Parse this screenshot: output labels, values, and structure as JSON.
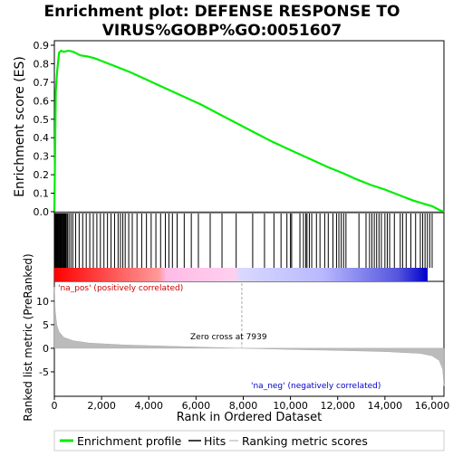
{
  "chart_data": {
    "type": "line",
    "title_line1": "Enrichment plot: DEFENSE RESPONSE TO",
    "title_line2": "VIRUS%GOBP%GO:0051607",
    "top_panel": {
      "ylabel": "Enrichment score (ES)",
      "ylim": [
        0,
        0.9
      ],
      "yticks": [
        "0.0",
        "0.1",
        "0.2",
        "0.3",
        "0.4",
        "0.5",
        "0.6",
        "0.7",
        "0.8",
        "0.9"
      ],
      "es_curve": [
        [
          0,
          0
        ],
        [
          60,
          0.65
        ],
        [
          120,
          0.76
        ],
        [
          200,
          0.86
        ],
        [
          280,
          0.87
        ],
        [
          400,
          0.865
        ],
        [
          600,
          0.87
        ],
        [
          800,
          0.865
        ],
        [
          1100,
          0.845
        ],
        [
          1400,
          0.84
        ],
        [
          1700,
          0.83
        ],
        [
          2100,
          0.81
        ],
        [
          2600,
          0.785
        ],
        [
          3200,
          0.755
        ],
        [
          3800,
          0.72
        ],
        [
          4400,
          0.685
        ],
        [
          5000,
          0.65
        ],
        [
          5600,
          0.615
        ],
        [
          6200,
          0.58
        ],
        [
          6800,
          0.54
        ],
        [
          7400,
          0.5
        ],
        [
          8000,
          0.46
        ],
        [
          8600,
          0.42
        ],
        [
          9200,
          0.38
        ],
        [
          9800,
          0.345
        ],
        [
          10400,
          0.31
        ],
        [
          11000,
          0.275
        ],
        [
          11600,
          0.24
        ],
        [
          12200,
          0.21
        ],
        [
          12800,
          0.175
        ],
        [
          13400,
          0.145
        ],
        [
          14000,
          0.12
        ],
        [
          14600,
          0.09
        ],
        [
          15200,
          0.06
        ],
        [
          15600,
          0.045
        ],
        [
          16000,
          0.03
        ],
        [
          16300,
          0.01
        ],
        [
          16500,
          0
        ]
      ]
    },
    "hits_panel": {
      "hit_positions": [
        20,
        45,
        70,
        95,
        120,
        150,
        180,
        210,
        240,
        270,
        300,
        330,
        360,
        390,
        420,
        450,
        480,
        510,
        560,
        620,
        700,
        780,
        900,
        1050,
        1200,
        1350,
        1500,
        1650,
        1800,
        1950,
        2100,
        2250,
        2400,
        2550,
        2700,
        2800,
        2900,
        3000,
        3150,
        3300,
        3500,
        3700,
        3900,
        4100,
        4300,
        4500,
        4700,
        4850,
        5000,
        5200,
        5500,
        5800,
        6100,
        6600,
        7100,
        7700,
        8400,
        8900,
        9300,
        9600,
        9850,
        10000,
        10050,
        10400,
        10550,
        10650,
        10700,
        10800,
        10900,
        11100,
        11250,
        11450,
        11600,
        11800,
        11950,
        12050,
        12150,
        12250,
        12350,
        12900,
        13200,
        13350,
        13450,
        13550,
        13650,
        13750,
        13850,
        14000,
        14100,
        14200,
        14400,
        14650,
        14750,
        14900,
        15100,
        15300,
        15500,
        15600,
        15700,
        15800,
        15900,
        16000
      ]
    },
    "metric_panel": {
      "ylabel": "Ranked list metric (PreRanked)",
      "ylim": [
        -10,
        14
      ],
      "yticks": [
        "10",
        "5",
        "0",
        "-5"
      ],
      "metric_curve": [
        [
          0,
          13
        ],
        [
          40,
          8
        ],
        [
          100,
          5
        ],
        [
          200,
          3.5
        ],
        [
          400,
          2.3
        ],
        [
          800,
          1.6
        ],
        [
          1500,
          1.1
        ],
        [
          3000,
          0.7
        ],
        [
          5000,
          0.4
        ],
        [
          7939,
          0
        ],
        [
          10000,
          -0.25
        ],
        [
          12000,
          -0.45
        ],
        [
          14000,
          -0.7
        ],
        [
          15500,
          -1.1
        ],
        [
          16000,
          -1.6
        ],
        [
          16300,
          -2.6
        ],
        [
          16450,
          -4.5
        ],
        [
          16500,
          -8
        ]
      ],
      "zero_cross_label": "Zero cross at 7939",
      "pos_label": "'na_pos' (positively correlated)",
      "neg_label": "'na_neg' (negatively correlated)"
    },
    "x_axis": {
      "xlabel": "Rank in Ordered Dataset",
      "xlim": [
        0,
        16500
      ],
      "xticks": [
        "0",
        "2,000",
        "4,000",
        "6,000",
        "8,000",
        "10,000",
        "12,000",
        "14,000",
        "16,000"
      ]
    },
    "legend": {
      "items": [
        "Enrichment profile",
        "Hits",
        "Ranking metric scores"
      ],
      "placement": "bottom"
    },
    "colors": {
      "es_line": "#00ee00",
      "hits": "#000000",
      "metric_fill": "#bbbbbb",
      "pos_label": "#cc0000",
      "neg_label": "#0000cc",
      "zero_line": "#aaaaaa"
    }
  }
}
